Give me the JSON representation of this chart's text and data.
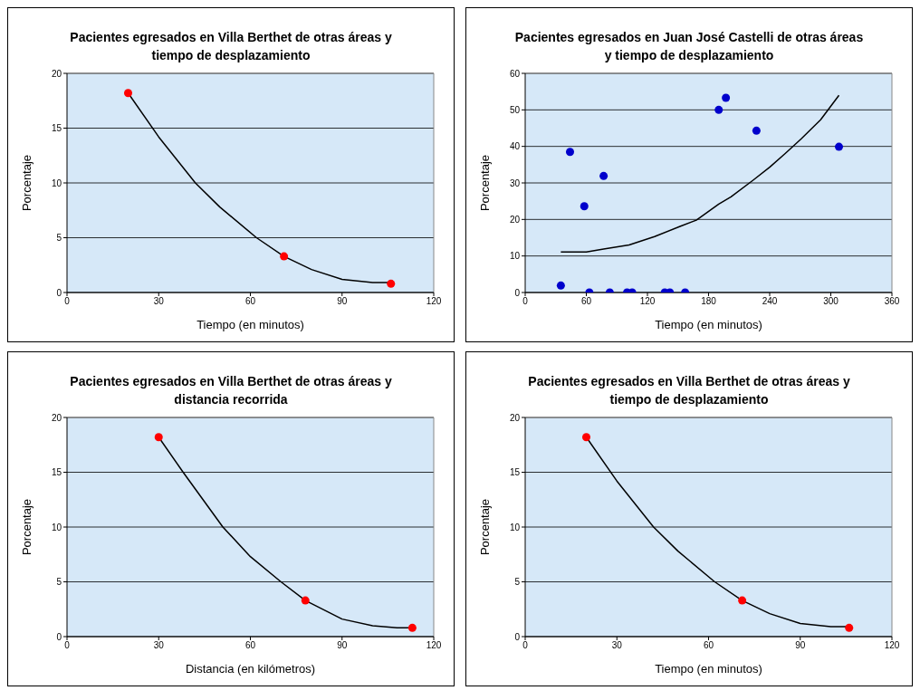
{
  "chart_data": [
    {
      "type": "scatter",
      "title": "Pacientes egresados en  Villa Berthet de otras áreas y tiempo de desplazamiento",
      "xlabel": "Tiempo  (en minutos)",
      "ylabel": "Porcentaje",
      "xlim": [
        0,
        120
      ],
      "xticks": [
        0,
        30,
        60,
        90,
        120
      ],
      "ylim": [
        0,
        20
      ],
      "yticks": [
        0,
        5,
        10,
        15,
        20
      ],
      "grid": "y",
      "series": [
        {
          "type": "scatter",
          "marker": "circle",
          "color": "#ff0000",
          "x": [
            20,
            71,
            106
          ],
          "values": [
            18.2,
            3.3,
            0.8
          ]
        },
        {
          "type": "line",
          "marker": "none",
          "color": "#000000",
          "x": [
            20,
            30,
            42,
            50,
            62,
            71,
            80,
            90,
            100,
            106
          ],
          "values": [
            18.2,
            14.2,
            10,
            7.8,
            5,
            3.3,
            2.1,
            1.2,
            0.9,
            0.9
          ]
        }
      ]
    },
    {
      "type": "scatter",
      "title": "Pacientes egresados en Juan José Castelli de otras áreas y tiempo de desplazamiento",
      "xlabel": "Tiempo (en minutos)",
      "ylabel": "Porcentaje",
      "xlim": [
        0,
        360
      ],
      "xticks": [
        0,
        60,
        120,
        180,
        240,
        300,
        360
      ],
      "ylim": [
        0,
        60
      ],
      "yticks": [
        0,
        10,
        20,
        30,
        40,
        50,
        60
      ],
      "grid": "y",
      "series": [
        {
          "type": "scatter",
          "marker": "circle",
          "color": "#0000cc",
          "x": [
            35,
            44,
            58,
            63,
            77,
            83,
            100,
            105,
            137,
            142,
            157,
            190,
            197,
            227,
            308
          ],
          "values": [
            1.9,
            38.5,
            23.6,
            0,
            31.9,
            0,
            0,
            0,
            0,
            0,
            0,
            50,
            53.3,
            44.3,
            39.9
          ]
        },
        {
          "type": "line",
          "marker": "none",
          "color": "#000000",
          "x": [
            35,
            60,
            77,
            102,
            127,
            152,
            168,
            190,
            202,
            224,
            240,
            255,
            271,
            290,
            308
          ],
          "values": [
            11.1,
            11.1,
            11.9,
            13,
            15.3,
            18.1,
            19.8,
            24.2,
            26.2,
            30.8,
            34.3,
            38,
            42.1,
            47.3,
            54
          ]
        }
      ]
    },
    {
      "type": "scatter",
      "title": "Pacientes egresados en  Villa Berthet de otras áreas y distancia recorrida",
      "xlabel": "Distancia  (en kilómetros)",
      "ylabel": "Porcentaje",
      "xlim": [
        0,
        120
      ],
      "xticks": [
        0,
        30,
        60,
        90,
        120
      ],
      "ylim": [
        0,
        20
      ],
      "yticks": [
        0,
        5,
        10,
        15,
        20
      ],
      "grid": "y",
      "series": [
        {
          "type": "scatter",
          "marker": "circle",
          "color": "#ff0000",
          "x": [
            30,
            78,
            113
          ],
          "values": [
            18.2,
            3.3,
            0.8
          ]
        },
        {
          "type": "line",
          "marker": "none",
          "color": "#000000",
          "x": [
            30,
            38,
            51,
            60,
            70,
            78,
            90,
            100,
            108,
            113
          ],
          "values": [
            18.2,
            15,
            10,
            7.3,
            5,
            3.3,
            1.6,
            1,
            0.8,
            0.8
          ]
        }
      ]
    },
    {
      "type": "scatter",
      "title": "Pacientes egresados en  Villa Berthet de otras áreas y tiempo de desplazamiento",
      "xlabel": "Tiempo  (en minutos)",
      "ylabel": "Porcentaje",
      "xlim": [
        0,
        120
      ],
      "xticks": [
        0,
        30,
        60,
        90,
        120
      ],
      "ylim": [
        0,
        20
      ],
      "yticks": [
        0,
        5,
        10,
        15,
        20
      ],
      "grid": "y",
      "series": [
        {
          "type": "scatter",
          "marker": "circle",
          "color": "#ff0000",
          "x": [
            20,
            71,
            106
          ],
          "values": [
            18.2,
            3.3,
            0.8
          ]
        },
        {
          "type": "line",
          "marker": "none",
          "color": "#000000",
          "x": [
            20,
            30,
            42,
            50,
            62,
            71,
            80,
            90,
            100,
            106
          ],
          "values": [
            18.2,
            14.2,
            10,
            7.8,
            5,
            3.3,
            2.1,
            1.2,
            0.9,
            0.9
          ]
        }
      ]
    }
  ]
}
